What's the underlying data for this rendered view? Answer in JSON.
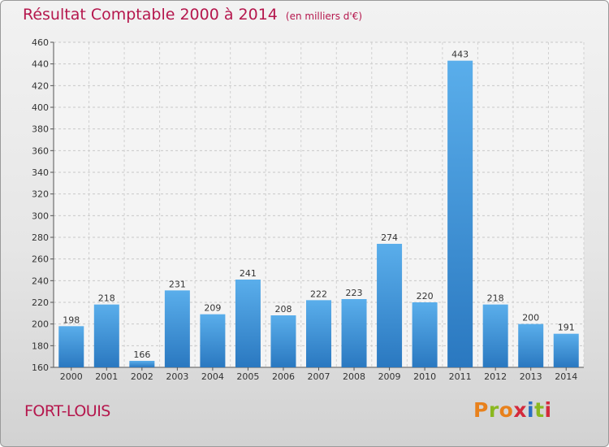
{
  "chart_data": {
    "type": "bar",
    "title": "Résultat Comptable 2000 à 2014",
    "subtitle": "(en milliers d'€)",
    "categories": [
      "2000",
      "2001",
      "2002",
      "2003",
      "2004",
      "2005",
      "2006",
      "2007",
      "2008",
      "2009",
      "2010",
      "2011",
      "2012",
      "2013",
      "2014"
    ],
    "values": [
      198,
      218,
      166,
      231,
      209,
      241,
      208,
      222,
      223,
      274,
      220,
      443,
      218,
      200,
      191
    ],
    "ylim": [
      160,
      460
    ],
    "yticks": [
      160,
      180,
      200,
      220,
      240,
      260,
      280,
      300,
      320,
      340,
      360,
      380,
      400,
      420,
      440,
      460
    ],
    "grid": true,
    "bar_color": "#3d8fd6"
  },
  "footer": {
    "commune": "FORT-LOUIS",
    "logo": "Proxiti",
    "logo_colors": [
      "#e8811c",
      "#8ab81f",
      "#e8811c",
      "#d42a3c",
      "#2a6fc2",
      "#8ab81f",
      "#d42a3c"
    ]
  }
}
